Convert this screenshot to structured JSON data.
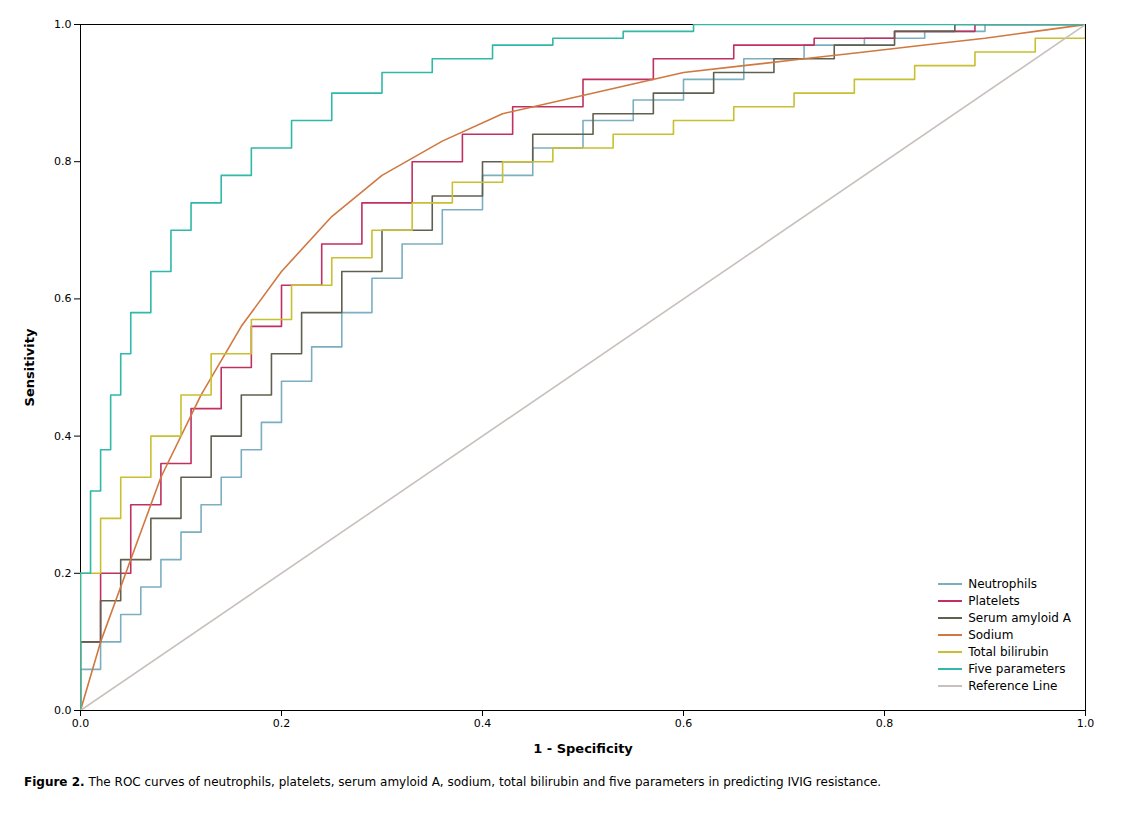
{
  "chart_data": {
    "type": "line",
    "xlabel": "1 - Specificity",
    "ylabel": "Sensitivity",
    "caption": "Figure 2. The ROC curves of neutrophils, platelets, serum amyloid A, sodium, total bilirubin and five parameters in predicting IVIG resistance.",
    "xlim": [
      0.0,
      1.0
    ],
    "ylim": [
      0.0,
      1.0
    ],
    "xticks": [
      {
        "value": 0.0,
        "label": "0.0"
      },
      0.2,
      0.4,
      0.6,
      0.8,
      {
        "value": 1.0,
        "label": "1.0"
      }
    ],
    "yticks": [
      {
        "value": 0.0,
        "label": "0.0"
      },
      0.2,
      0.4,
      0.6,
      0.8,
      {
        "value": 1.0,
        "label": "1.0"
      }
    ],
    "grid": false,
    "legend": "lower right",
    "series": [
      {
        "name": "Neutrophils",
        "color": "#7BAFC0",
        "type": "step",
        "x": [
          0.0,
          0.0,
          0.02,
          0.02,
          0.04,
          0.04,
          0.06,
          0.06,
          0.08,
          0.08,
          0.1,
          0.1,
          0.12,
          0.12,
          0.14,
          0.14,
          0.16,
          0.16,
          0.18,
          0.18,
          0.2,
          0.2,
          0.23,
          0.23,
          0.26,
          0.26,
          0.29,
          0.29,
          0.32,
          0.32,
          0.36,
          0.36,
          0.4,
          0.4,
          0.45,
          0.45,
          0.5,
          0.5,
          0.55,
          0.55,
          0.6,
          0.6,
          0.66,
          0.66,
          0.72,
          0.72,
          0.78,
          0.78,
          0.84,
          0.84,
          0.9,
          0.9,
          1.0
        ],
        "values": [
          0.0,
          0.06,
          0.06,
          0.1,
          0.1,
          0.14,
          0.14,
          0.18,
          0.18,
          0.22,
          0.22,
          0.26,
          0.26,
          0.3,
          0.3,
          0.34,
          0.34,
          0.38,
          0.38,
          0.42,
          0.42,
          0.48,
          0.48,
          0.53,
          0.53,
          0.58,
          0.58,
          0.63,
          0.63,
          0.68,
          0.68,
          0.73,
          0.73,
          0.78,
          0.78,
          0.82,
          0.82,
          0.86,
          0.86,
          0.89,
          0.89,
          0.92,
          0.92,
          0.95,
          0.95,
          0.97,
          0.97,
          0.98,
          0.98,
          0.99,
          0.99,
          1.0,
          1.0
        ]
      },
      {
        "name": "Platelets",
        "color": "#C03060",
        "type": "step",
        "x": [
          0.0,
          0.0,
          0.02,
          0.02,
          0.05,
          0.05,
          0.08,
          0.08,
          0.11,
          0.11,
          0.14,
          0.14,
          0.17,
          0.17,
          0.2,
          0.2,
          0.24,
          0.24,
          0.28,
          0.28,
          0.33,
          0.33,
          0.38,
          0.38,
          0.43,
          0.43,
          0.5,
          0.5,
          0.57,
          0.57,
          0.65,
          0.65,
          0.73,
          0.73,
          0.81,
          0.81,
          0.89,
          0.89,
          1.0
        ],
        "values": [
          0.0,
          0.1,
          0.1,
          0.2,
          0.2,
          0.3,
          0.3,
          0.36,
          0.36,
          0.44,
          0.44,
          0.5,
          0.5,
          0.56,
          0.56,
          0.62,
          0.62,
          0.68,
          0.68,
          0.74,
          0.74,
          0.8,
          0.8,
          0.84,
          0.84,
          0.88,
          0.88,
          0.92,
          0.92,
          0.95,
          0.95,
          0.97,
          0.97,
          0.98,
          0.98,
          0.99,
          0.99,
          1.0,
          1.0
        ]
      },
      {
        "name": "Serum amyloid A",
        "color": "#606050",
        "type": "step",
        "x": [
          0.0,
          0.0,
          0.02,
          0.02,
          0.04,
          0.04,
          0.07,
          0.07,
          0.1,
          0.1,
          0.13,
          0.13,
          0.16,
          0.16,
          0.19,
          0.19,
          0.22,
          0.22,
          0.26,
          0.26,
          0.3,
          0.3,
          0.35,
          0.35,
          0.4,
          0.4,
          0.45,
          0.45,
          0.51,
          0.51,
          0.57,
          0.57,
          0.63,
          0.63,
          0.69,
          0.69,
          0.75,
          0.75,
          0.81,
          0.81,
          0.87,
          0.87,
          0.93,
          0.93,
          1.0
        ],
        "values": [
          0.0,
          0.1,
          0.1,
          0.16,
          0.16,
          0.22,
          0.22,
          0.28,
          0.28,
          0.34,
          0.34,
          0.4,
          0.4,
          0.46,
          0.46,
          0.52,
          0.52,
          0.58,
          0.58,
          0.64,
          0.64,
          0.7,
          0.7,
          0.75,
          0.75,
          0.8,
          0.8,
          0.84,
          0.84,
          0.87,
          0.87,
          0.9,
          0.9,
          0.93,
          0.93,
          0.95,
          0.95,
          0.97,
          0.97,
          0.99,
          0.99,
          1.0,
          1.0,
          1.0,
          1.0
        ]
      },
      {
        "name": "Sodium",
        "color": "#D07840",
        "type": "line",
        "x": [
          0.0,
          0.02,
          0.05,
          0.08,
          0.12,
          0.16,
          0.2,
          0.25,
          0.3,
          0.36,
          0.42,
          0.48,
          0.54,
          0.6,
          0.66,
          0.72,
          0.78,
          0.84,
          0.9,
          0.95,
          1.0
        ],
        "values": [
          0.0,
          0.1,
          0.22,
          0.34,
          0.46,
          0.56,
          0.64,
          0.72,
          0.78,
          0.83,
          0.87,
          0.89,
          0.91,
          0.93,
          0.94,
          0.95,
          0.96,
          0.97,
          0.98,
          0.99,
          1.0
        ]
      },
      {
        "name": "Total bilirubin",
        "color": "#C8C030",
        "type": "step",
        "x": [
          0.0,
          0.0,
          0.02,
          0.02,
          0.04,
          0.04,
          0.07,
          0.07,
          0.1,
          0.1,
          0.13,
          0.13,
          0.17,
          0.17,
          0.21,
          0.21,
          0.25,
          0.25,
          0.29,
          0.29,
          0.33,
          0.33,
          0.37,
          0.37,
          0.42,
          0.42,
          0.47,
          0.47,
          0.53,
          0.53,
          0.59,
          0.59,
          0.65,
          0.65,
          0.71,
          0.71,
          0.77,
          0.77,
          0.83,
          0.83,
          0.89,
          0.89,
          0.95,
          0.95,
          1.0
        ],
        "values": [
          0.0,
          0.2,
          0.2,
          0.28,
          0.28,
          0.34,
          0.34,
          0.4,
          0.4,
          0.46,
          0.46,
          0.52,
          0.52,
          0.57,
          0.57,
          0.62,
          0.62,
          0.66,
          0.66,
          0.7,
          0.7,
          0.74,
          0.74,
          0.77,
          0.77,
          0.8,
          0.8,
          0.82,
          0.82,
          0.84,
          0.84,
          0.86,
          0.86,
          0.88,
          0.88,
          0.9,
          0.9,
          0.92,
          0.92,
          0.94,
          0.94,
          0.96,
          0.96,
          0.98,
          1.0
        ]
      },
      {
        "name": "Five parameters",
        "color": "#30B8A8",
        "type": "step",
        "x": [
          0.0,
          0.0,
          0.01,
          0.01,
          0.02,
          0.02,
          0.03,
          0.03,
          0.04,
          0.04,
          0.05,
          0.05,
          0.07,
          0.07,
          0.09,
          0.09,
          0.11,
          0.11,
          0.14,
          0.14,
          0.17,
          0.17,
          0.21,
          0.21,
          0.25,
          0.25,
          0.3,
          0.3,
          0.35,
          0.35,
          0.41,
          0.41,
          0.47,
          0.47,
          0.54,
          0.54,
          0.61,
          0.61,
          0.68,
          0.68,
          0.76,
          0.76,
          0.84,
          0.84,
          0.92,
          0.92,
          1.0
        ],
        "values": [
          0.0,
          0.2,
          0.2,
          0.32,
          0.32,
          0.38,
          0.38,
          0.46,
          0.46,
          0.52,
          0.52,
          0.58,
          0.58,
          0.64,
          0.64,
          0.7,
          0.7,
          0.74,
          0.74,
          0.78,
          0.78,
          0.82,
          0.82,
          0.86,
          0.86,
          0.9,
          0.9,
          0.93,
          0.93,
          0.95,
          0.95,
          0.97,
          0.97,
          0.98,
          0.98,
          0.99,
          0.99,
          1.0,
          1.0,
          1.0,
          1.0,
          1.0,
          1.0,
          1.0,
          1.0,
          1.0,
          1.0
        ]
      },
      {
        "name": "Reference Line",
        "color": "#C8C0BC",
        "type": "line",
        "x": [
          0,
          1
        ],
        "values": [
          0,
          1
        ]
      }
    ]
  }
}
